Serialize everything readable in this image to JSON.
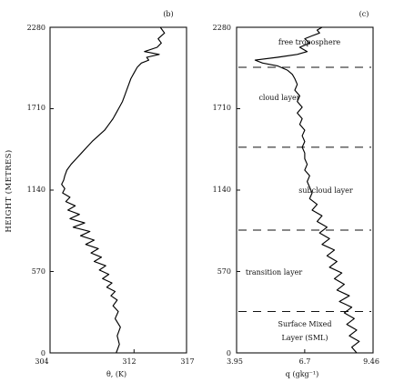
{
  "ylabel": "HEIGHT (METRES)",
  "chart_data": [
    {
      "type": "line",
      "panel_label": "(b)",
      "xlabel": "θ, (K)",
      "xticks": [
        "304",
        "312",
        "317"
      ],
      "xlim": [
        304,
        317
      ],
      "yticks": [
        "0",
        "570",
        "1140",
        "1710",
        "2280"
      ],
      "ylim": [
        0,
        2280
      ],
      "series": [
        {
          "x": [
            310.3,
            310.6,
            310.4,
            310.7,
            310.2,
            310.5,
            310.0,
            310.4,
            309.8,
            310.2,
            309.4,
            309.9,
            309.0,
            309.6,
            308.7,
            309.3,
            308.2,
            308.9,
            307.9,
            308.6,
            307.4,
            308.2,
            306.9,
            307.8,
            306.2,
            307.3,
            305.9,
            306.8,
            305.7,
            306.4,
            305.5,
            305.9,
            305.2,
            305.4,
            305.1,
            305.3,
            305.4,
            305.6,
            306.0,
            306.5,
            307.0,
            307.5,
            308.0,
            308.6,
            309.2,
            309.6,
            310.0,
            310.3,
            310.6,
            310.9,
            311.1,
            311.3,
            311.5,
            311.7,
            312.0,
            312.3,
            312.7,
            313.4,
            313.2,
            314.4,
            313.0,
            314.2,
            314.6,
            314.3,
            314.9,
            314.5
          ],
          "y": [
            0,
            60,
            120,
            180,
            240,
            290,
            330,
            370,
            400,
            430,
            460,
            490,
            520,
            550,
            580,
            610,
            640,
            670,
            700,
            730,
            760,
            790,
            820,
            850,
            880,
            910,
            940,
            970,
            1000,
            1030,
            1060,
            1090,
            1120,
            1150,
            1180,
            1210,
            1240,
            1280,
            1320,
            1360,
            1400,
            1440,
            1480,
            1520,
            1560,
            1600,
            1640,
            1680,
            1720,
            1760,
            1800,
            1840,
            1880,
            1920,
            1960,
            2000,
            2030,
            2050,
            2070,
            2090,
            2110,
            2140,
            2170,
            2200,
            2240,
            2280
          ]
        }
      ]
    },
    {
      "type": "line",
      "panel_label": "(c)",
      "xlabel": "q (gkg⁻¹)",
      "xticks": [
        "3.95",
        "6.7",
        "9.46"
      ],
      "xlim": [
        3.95,
        9.46
      ],
      "yticks": [
        "0",
        "570",
        "1140",
        "1710",
        "2280"
      ],
      "ylim": [
        0,
        2280
      ],
      "series": [
        {
          "x": [
            8.8,
            8.6,
            8.9,
            8.5,
            8.8,
            8.4,
            8.7,
            8.3,
            8.6,
            8.1,
            8.5,
            8.0,
            8.3,
            7.9,
            8.2,
            7.7,
            8.0,
            7.6,
            7.9,
            7.4,
            7.7,
            7.3,
            7.6,
            7.2,
            7.4,
            7.0,
            7.2,
            6.9,
            7.0,
            6.9,
            6.8,
            6.9,
            6.7,
            6.8,
            6.7,
            6.7,
            6.6,
            6.7,
            6.6,
            6.7,
            6.5,
            6.6,
            6.4,
            6.6,
            6.4,
            6.5,
            6.3,
            6.4,
            6.3,
            6.2,
            6.0,
            5.6,
            5.0,
            4.7,
            5.6,
            6.4,
            6.8,
            6.5,
            6.9,
            6.7,
            7.0,
            7.3,
            7.2,
            7.4
          ],
          "y": [
            0,
            40,
            80,
            120,
            160,
            200,
            240,
            280,
            320,
            360,
            400,
            440,
            480,
            520,
            560,
            600,
            640,
            680,
            720,
            760,
            800,
            840,
            880,
            920,
            960,
            1000,
            1040,
            1080,
            1120,
            1160,
            1200,
            1240,
            1280,
            1320,
            1360,
            1400,
            1440,
            1480,
            1520,
            1560,
            1600,
            1640,
            1680,
            1720,
            1760,
            1800,
            1840,
            1880,
            1920,
            1950,
            1980,
            2010,
            2030,
            2050,
            2070,
            2090,
            2110,
            2140,
            2170,
            2200,
            2220,
            2240,
            2260,
            2280
          ]
        }
      ],
      "layer_boundaries": [
        2000,
        1440,
        860,
        290
      ],
      "layer_labels": [
        "free troposphere",
        "cloud layer",
        "subcloud layer",
        "transition layer",
        "Surface Mixed",
        "Layer (SML)"
      ]
    }
  ]
}
